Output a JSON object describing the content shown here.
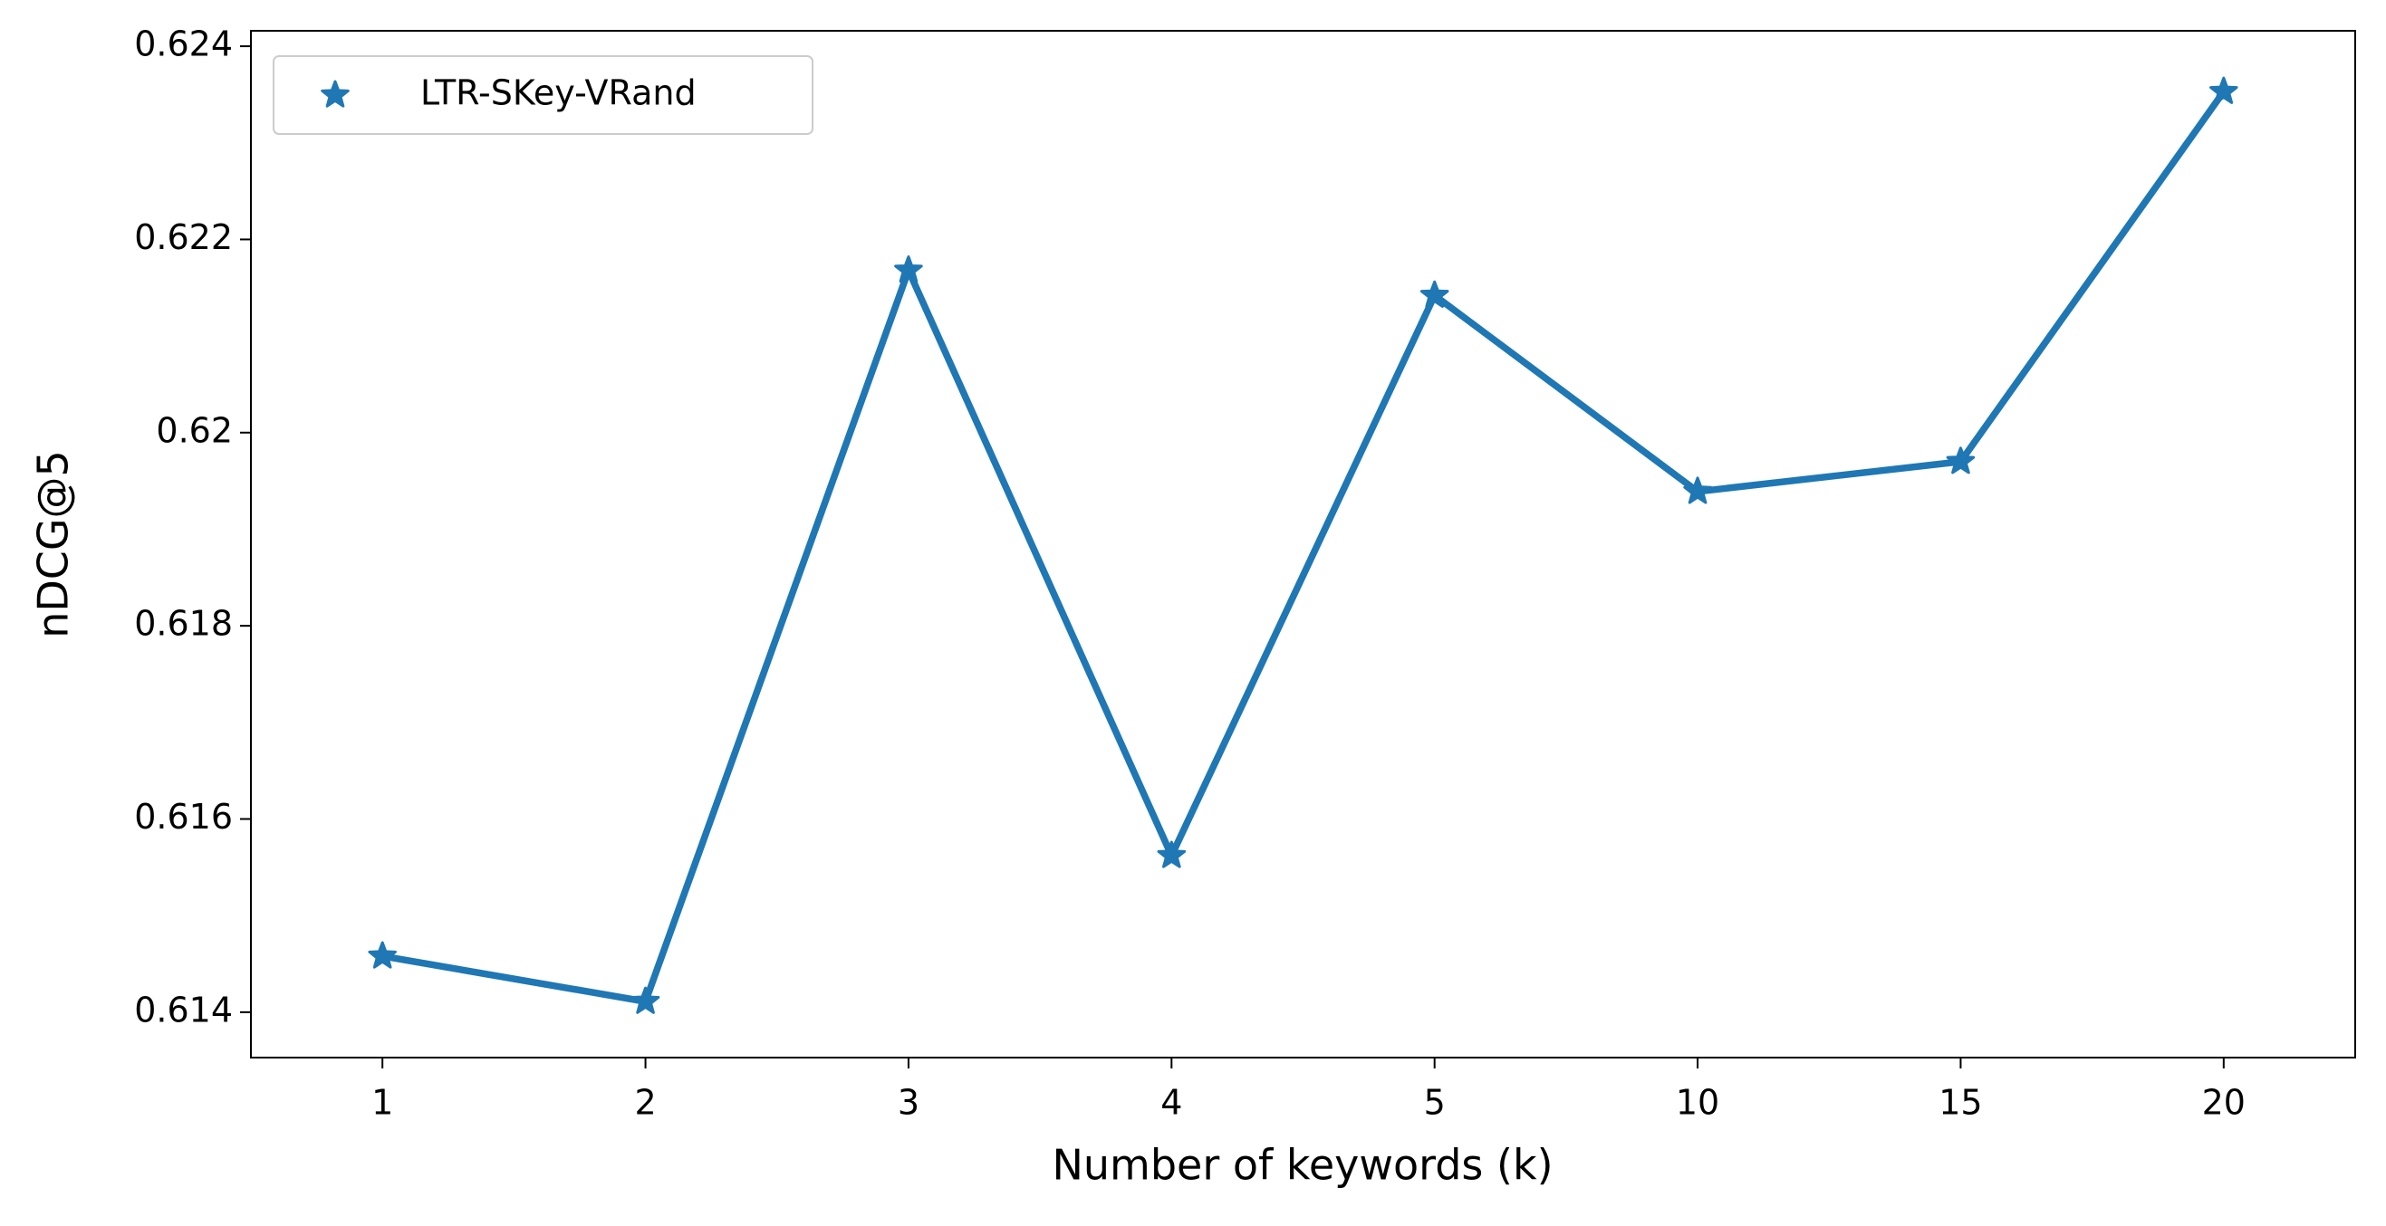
{
  "chart_data": {
    "type": "line",
    "x_label": "Number of keywords (k)",
    "y_label": "nDCG@5",
    "categories": [
      "1",
      "2",
      "3",
      "4",
      "5",
      "10",
      "15",
      "20"
    ],
    "series": [
      {
        "name": "LTR-SKey-VRand",
        "color": "#1f77b4",
        "values": [
          0.61458,
          0.61411,
          0.62168,
          0.61562,
          0.62142,
          0.61939,
          0.6197,
          0.62353
        ]
      }
    ],
    "ylim": [
      0.61353,
      0.62416
    ],
    "yticks": [
      0.614,
      0.616,
      0.618,
      0.62,
      0.622,
      0.624
    ],
    "grid": false,
    "legend": "upper-left"
  }
}
